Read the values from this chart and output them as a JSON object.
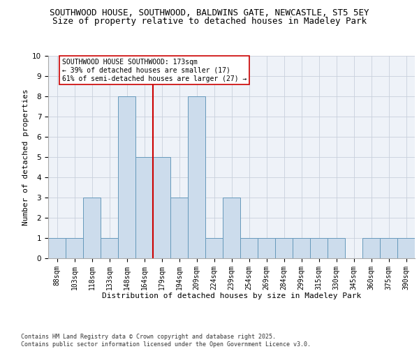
{
  "title_line1": "SOUTHWOOD HOUSE, SOUTHWOOD, BALDWINS GATE, NEWCASTLE, ST5 5EY",
  "title_line2": "Size of property relative to detached houses in Madeley Park",
  "xlabel": "Distribution of detached houses by size in Madeley Park",
  "ylabel": "Number of detached properties",
  "categories": [
    "88sqm",
    "103sqm",
    "118sqm",
    "133sqm",
    "148sqm",
    "164sqm",
    "179sqm",
    "194sqm",
    "209sqm",
    "224sqm",
    "239sqm",
    "254sqm",
    "269sqm",
    "284sqm",
    "299sqm",
    "315sqm",
    "330sqm",
    "345sqm",
    "360sqm",
    "375sqm",
    "390sqm"
  ],
  "values": [
    1,
    1,
    3,
    1,
    8,
    5,
    5,
    3,
    8,
    1,
    3,
    1,
    1,
    1,
    1,
    1,
    1,
    0,
    1,
    1,
    1
  ],
  "bar_color": "#ccdcec",
  "bar_edge_color": "#6699bb",
  "vline_color": "#cc0000",
  "annotation_text": "SOUTHWOOD HOUSE SOUTHWOOD: 173sqm\n← 39% of detached houses are smaller (17)\n61% of semi-detached houses are larger (27) →",
  "annotation_box_color": "white",
  "annotation_box_edge": "#cc0000",
  "ylim": [
    0,
    10
  ],
  "yticks": [
    0,
    1,
    2,
    3,
    4,
    5,
    6,
    7,
    8,
    9,
    10
  ],
  "background_color": "#eef2f8",
  "grid_color": "#c8d0dc",
  "footer_text": "Contains HM Land Registry data © Crown copyright and database right 2025.\nContains public sector information licensed under the Open Government Licence v3.0.",
  "title_fontsize": 9,
  "subtitle_fontsize": 9,
  "axis_label_fontsize": 8,
  "tick_fontsize": 7,
  "annotation_fontsize": 7,
  "footer_fontsize": 6
}
